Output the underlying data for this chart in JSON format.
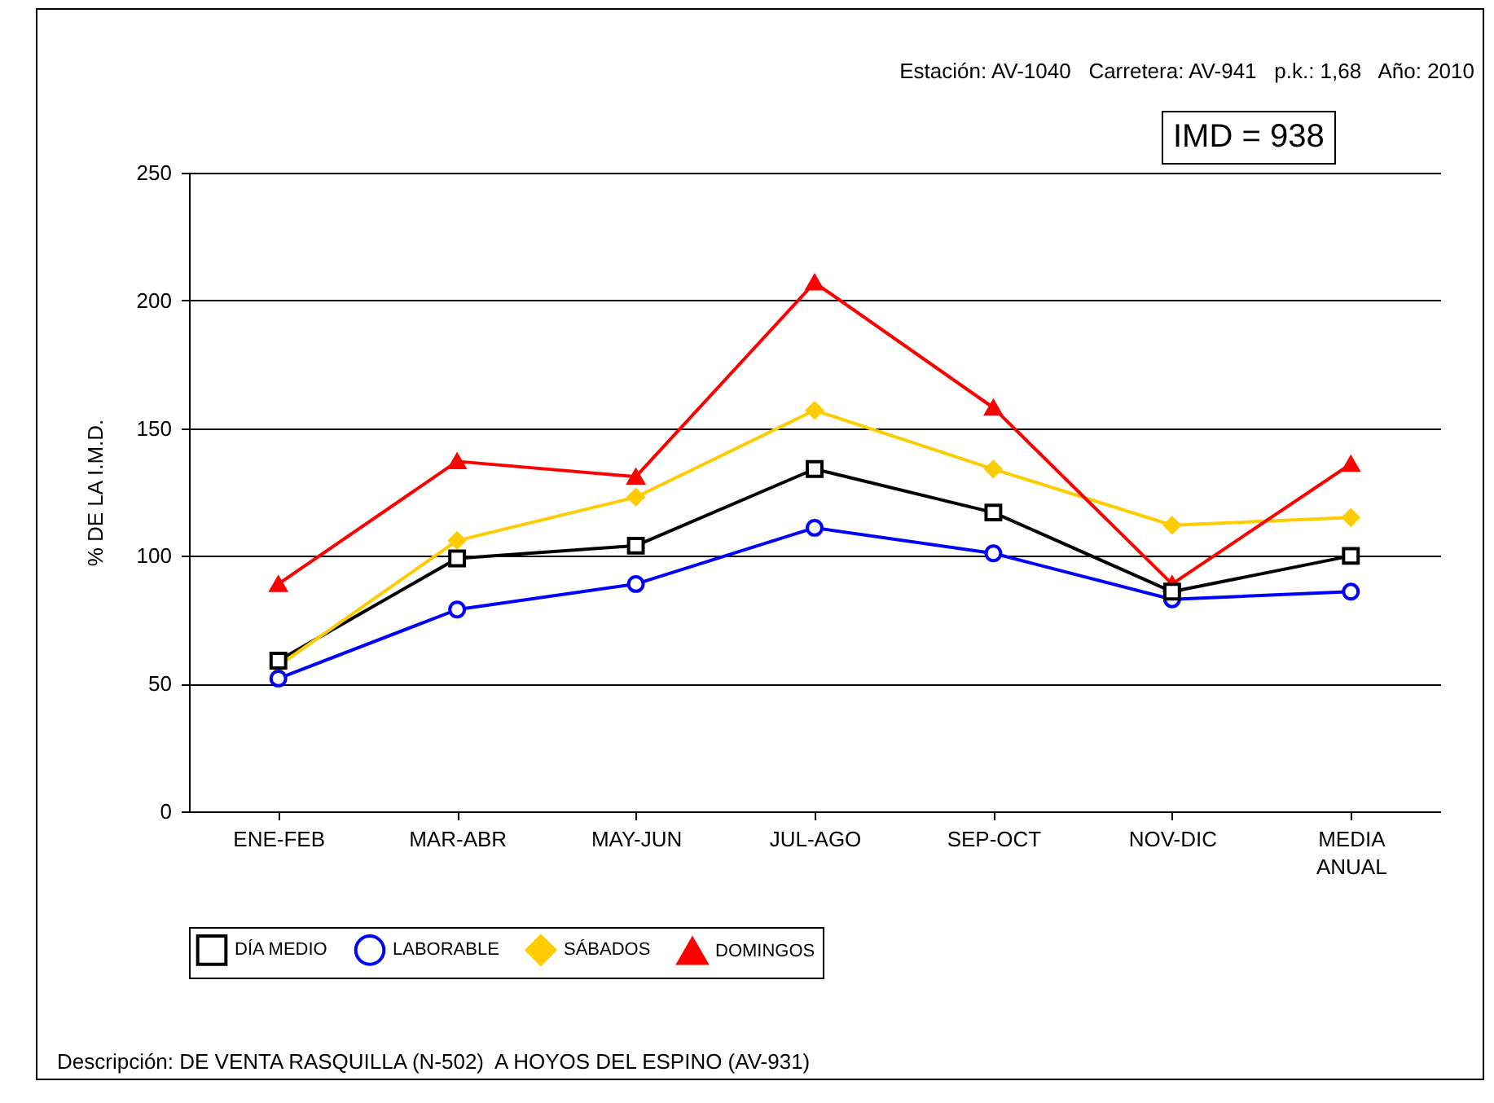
{
  "chart_data": {
    "type": "line",
    "ylabel": "% DE LA I.M.D.",
    "categories": [
      "ENE-FEB",
      "MAR-ABR",
      "MAY-JUN",
      "JUL-AGO",
      "SEP-OCT",
      "NOV-DIC",
      "MEDIA ANUAL"
    ],
    "series": [
      {
        "name": "DÍA MEDIO",
        "color": "#000000",
        "marker": "square",
        "values": [
          59,
          99,
          104,
          134,
          117,
          86,
          100
        ]
      },
      {
        "name": "LABORABLE",
        "color": "#0000ff",
        "marker": "circle",
        "values": [
          52,
          79,
          89,
          111,
          101,
          83,
          86
        ]
      },
      {
        "name": "SÁBADOS",
        "color": "#ffcc00",
        "marker": "diamond",
        "values": [
          57,
          106,
          123,
          157,
          134,
          112,
          115
        ]
      },
      {
        "name": "DOMINGOS",
        "color": "#ff0000",
        "marker": "triangle",
        "values": [
          89,
          137,
          131,
          207,
          158,
          89,
          136
        ]
      }
    ],
    "ylim": [
      0,
      250
    ],
    "yticks": [
      0,
      50,
      100,
      150,
      200,
      250
    ],
    "grid": "y",
    "legend": "bottom",
    "line_style": "solid",
    "annotations": [
      "Estación: AV-1040   Carretera: AV-941   p.k.: 1,68   Año: 2010",
      "IMD = 938",
      "Descripción: DE VENTA RASQUILLA (N-502)  A HOYOS DEL ESPINO (AV-931)"
    ]
  }
}
